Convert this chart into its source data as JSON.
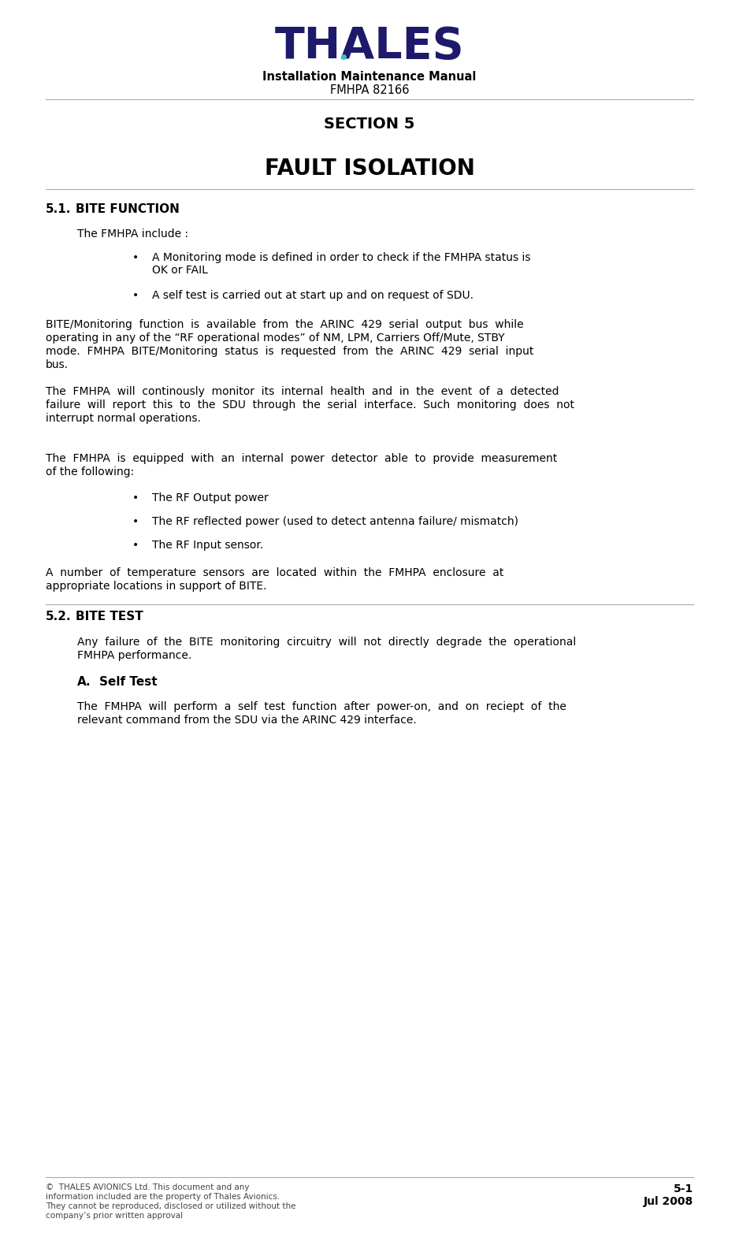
{
  "page_width": 9.38,
  "page_height": 15.89,
  "bg_color": "#ffffff",
  "logo_text": "THALES",
  "logo_color": "#1e1a6b",
  "logo_dot_color": "#3bbfbf",
  "header_line1": "Installation Maintenance Manual",
  "header_line2": "FMHPA 82166",
  "section_title": "SECTION 5",
  "chapter_title": "FAULT ISOLATION",
  "section_51_label": "5.1.",
  "section_51_text": "BITE FUNCTION",
  "section_52_label": "5.2.",
  "section_52_text": "BITE TEST",
  "subsection_a_label": "A.",
  "subsection_a_text": "Self Test",
  "para_intro": "The FMHPA include :",
  "bullet1_line1": "A Monitoring mode is defined in order to check if the FMHPA status is",
  "bullet1_line2": "OK or FAIL",
  "bullet2": "A self test is carried out at start up and on request of SDU.",
  "para1_line1": "BITE/Monitoring  function  is  available  from  the  ARINC  429  serial  output  bus  while",
  "para1_line2": "operating in any of the “RF operational modes” of NM, LPM, Carriers Off/Mute, STBY",
  "para1_line3": "mode.  FMHPA  BITE/Monitoring  status  is  requested  from  the  ARINC  429  serial  input",
  "para1_line4": "bus.",
  "para2_line1": "The  FMHPA  will  continously  monitor  its  internal  health  and  in  the  event  of  a  detected",
  "para2_line2": "failure  will  report  this  to  the  SDU  through  the  serial  interface.  Such  monitoring  does  not",
  "para2_line3": "interrupt normal operations.",
  "para3_line1": "The  FMHPA  is  equipped  with  an  internal  power  detector  able  to  provide  measurement",
  "para3_line2": "of the following:",
  "bullet3": "The RF Output power",
  "bullet4": "The RF reflected power (used to detect antenna failure/ mismatch)",
  "bullet5": "The RF Input sensor.",
  "para4_line1": "A  number  of  temperature  sensors  are  located  within  the  FMHPA  enclosure  at",
  "para4_line2": "appropriate locations in support of BITE.",
  "para5_line1": "Any  failure  of  the  BITE  monitoring  circuitry  will  not  directly  degrade  the  operational",
  "para5_line2": "FMHPA performance.",
  "para6_line1": "The  FMHPA  will  perform  a  self  test  function  after  power-on,  and  on  reciept  of  the",
  "para6_line2": "relevant command from the SDU via the ARINC 429 interface.",
  "footer_left_lines": [
    "©  THALES AVIONICS Ltd. This document and any",
    "information included are the property of Thales Avionics.",
    "They cannot be reproduced, disclosed or utilized without the",
    "company’s prior written approval"
  ],
  "footer_right_line1": "5-1",
  "footer_right_line2": "Jul 2008",
  "text_color": "#000000",
  "footer_color": "#444444",
  "line_color": "#aaaaaa"
}
